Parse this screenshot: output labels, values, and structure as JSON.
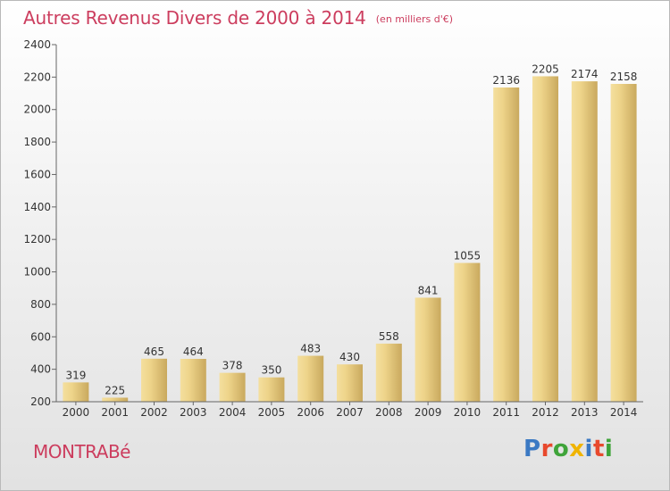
{
  "chart_data": {
    "type": "bar",
    "title": "Autres Revenus Divers de 2000 à 2014",
    "subtitle": "(en milliers d'€)",
    "categories": [
      "2000",
      "2001",
      "2002",
      "2003",
      "2004",
      "2005",
      "2006",
      "2007",
      "2008",
      "2009",
      "2010",
      "2011",
      "2012",
      "2013",
      "2014"
    ],
    "values": [
      319,
      225,
      465,
      464,
      378,
      350,
      483,
      430,
      558,
      841,
      1055,
      2136,
      2205,
      2174,
      2158
    ],
    "ylim": [
      200,
      2400
    ],
    "yticks": [
      200,
      400,
      600,
      800,
      1000,
      1200,
      1400,
      1600,
      1800,
      2000,
      2200,
      2400
    ],
    "grid": false,
    "bar_color": "#e8cf88"
  },
  "footer": {
    "commune": "MONTRABé",
    "logo_text": "Proxiti"
  },
  "colors": {
    "title": "#cc3d5e",
    "logo": [
      "#3b79c3",
      "#e8492d",
      "#3fa43a",
      "#f0b400",
      "#3b79c3",
      "#e8492d",
      "#3fa43a"
    ]
  }
}
